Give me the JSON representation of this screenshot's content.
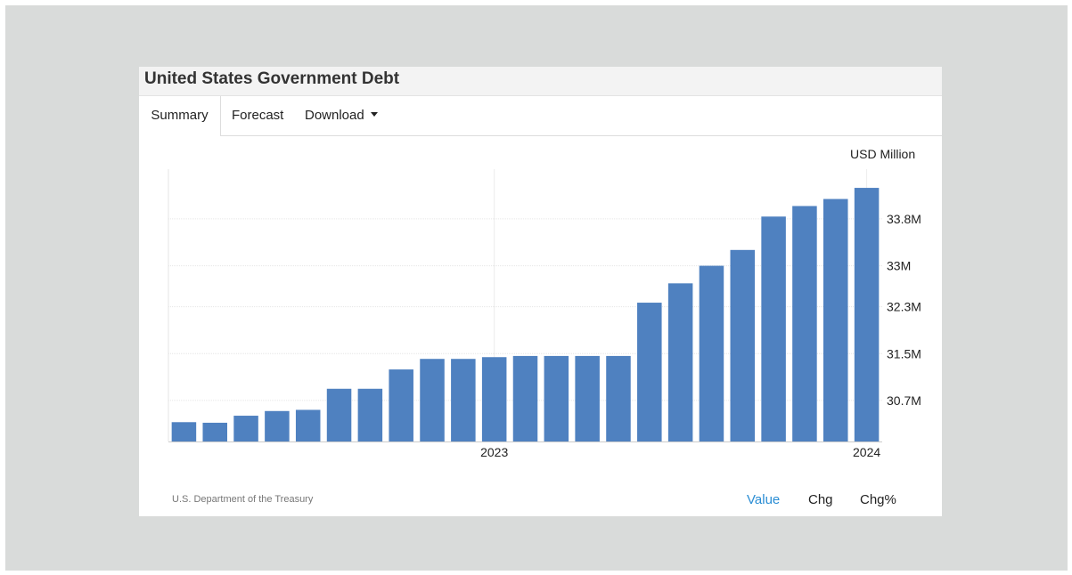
{
  "title": "United States Government Debt",
  "tabs": [
    {
      "label": "Summary",
      "active": true
    },
    {
      "label": "Forecast",
      "active": false
    },
    {
      "label": "Download",
      "active": false,
      "dropdown": true
    }
  ],
  "unit_label": "USD Million",
  "source": "U.S. Department of the Treasury",
  "modes": [
    {
      "label": "Value",
      "active": true
    },
    {
      "label": "Chg",
      "active": false
    },
    {
      "label": "Chg%",
      "active": false
    }
  ],
  "colors": {
    "bar": "#4f81c0",
    "active_mode": "#2a8dd4",
    "background": "#d9dbda"
  },
  "chart_data": {
    "type": "bar",
    "ylim": [
      30000000,
      34650000
    ],
    "y_ticks": [
      {
        "value": 30700000,
        "label": "30.7M"
      },
      {
        "value": 31500000,
        "label": "31.5M"
      },
      {
        "value": 32300000,
        "label": "32.3M"
      },
      {
        "value": 33000000,
        "label": "33M"
      },
      {
        "value": 33800000,
        "label": "33.8M"
      }
    ],
    "x_ticks": [
      {
        "index": 10.5,
        "label": "2023"
      },
      {
        "index": 22.5,
        "label": "2024"
      }
    ],
    "values": [
      30330000,
      30320000,
      30440000,
      30520000,
      30540000,
      30900000,
      30900000,
      31230000,
      31410000,
      31410000,
      31440000,
      31460000,
      31460000,
      31460000,
      31460000,
      32370000,
      32700000,
      33000000,
      33270000,
      33840000,
      34020000,
      34140000,
      34330000
    ],
    "grid": true,
    "legend": "none"
  }
}
